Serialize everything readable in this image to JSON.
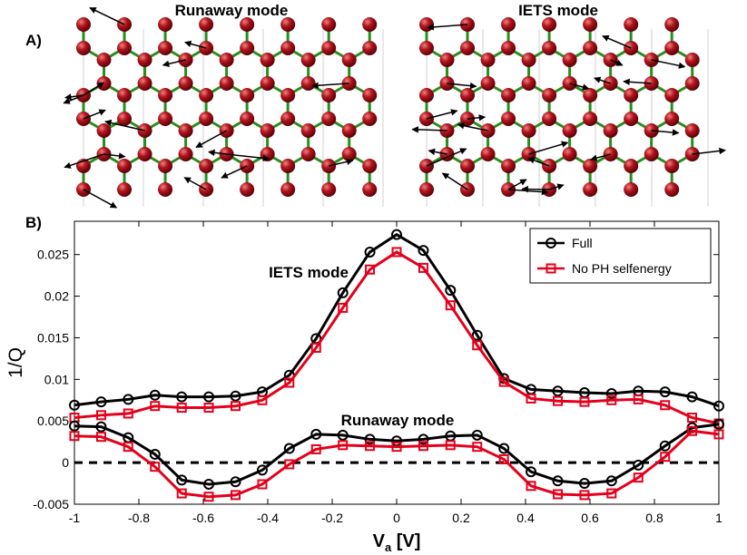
{
  "panel_a": {
    "label": "A)",
    "left_title": "Runaway mode",
    "right_title": "IETS mode"
  },
  "colors": {
    "atom": "#b0141c",
    "bond": "#2a8c1e",
    "arrow": "#000000",
    "full": "#000000",
    "no_ph": "#e3001b"
  },
  "chart_data": {
    "panel_label": "B)",
    "type": "line",
    "xlabel_main": "V",
    "xlabel_sub": "a",
    "xlabel_unit": " [V]",
    "ylabel": "1/Q",
    "xlim": [
      -1,
      1
    ],
    "ylim": [
      -0.005,
      0.029
    ],
    "xticks": [
      -1,
      -0.8,
      -0.6,
      -0.4,
      -0.2,
      0,
      0.2,
      0.4,
      0.6,
      0.8,
      1
    ],
    "xtick_labels": [
      "-1",
      "-0.8",
      "-0.6",
      "-0.4",
      "-0.2",
      "0",
      "0.2",
      "0.4",
      "0.6",
      "0.8",
      "1"
    ],
    "yticks": [
      -0.005,
      0,
      0.005,
      0.01,
      0.015,
      0.02,
      0.025
    ],
    "ytick_labels": [
      "-0.005",
      "0",
      "0.005",
      "0.01",
      "0.015",
      "0.02",
      "0.025"
    ],
    "legend": [
      "Full",
      "No PH selfenergy"
    ],
    "annotations": [
      "IETS mode",
      "Runaway mode"
    ],
    "x": [
      -1,
      -0.917,
      -0.833,
      -0.75,
      -0.667,
      -0.583,
      -0.5,
      -0.417,
      -0.333,
      -0.25,
      -0.167,
      -0.083,
      0,
      0.083,
      0.167,
      0.25,
      0.333,
      0.417,
      0.5,
      0.583,
      0.667,
      0.75,
      0.833,
      0.917,
      1
    ],
    "series": [
      {
        "name": "Full (IETS mode)",
        "legend_index": 0,
        "values": [
          0.0069,
          0.0073,
          0.0076,
          0.0081,
          0.0079,
          0.0079,
          0.008,
          0.0085,
          0.0105,
          0.0149,
          0.0204,
          0.0253,
          0.0274,
          0.0255,
          0.0207,
          0.0153,
          0.0101,
          0.0088,
          0.0086,
          0.0084,
          0.0083,
          0.0086,
          0.0085,
          0.0079,
          0.0068
        ]
      },
      {
        "name": "No PH selfenergy (IETS mode)",
        "legend_index": 1,
        "values": [
          0.0054,
          0.0057,
          0.0059,
          0.0068,
          0.0066,
          0.0066,
          0.0068,
          0.0075,
          0.0096,
          0.0138,
          0.0186,
          0.0232,
          0.0253,
          0.0234,
          0.0189,
          0.0141,
          0.0097,
          0.0077,
          0.0074,
          0.0073,
          0.0075,
          0.0076,
          0.0069,
          0.0054,
          0.0047
        ]
      },
      {
        "name": "Full (Runaway mode)",
        "legend_index": 0,
        "values": [
          0.0044,
          0.0043,
          0.003,
          0.001,
          -0.0021,
          -0.0026,
          -0.0023,
          -0.0009,
          0.0017,
          0.0034,
          0.0033,
          0.0028,
          0.0026,
          0.0028,
          0.0032,
          0.0033,
          0.0017,
          -0.0011,
          -0.0022,
          -0.0025,
          -0.0022,
          -0.0003,
          0.002,
          0.0042,
          0.0046
        ]
      },
      {
        "name": "No PH selfenergy (Runaway mode)",
        "legend_index": 1,
        "values": [
          0.0032,
          0.0031,
          0.0019,
          -0.0005,
          -0.0037,
          -0.0041,
          -0.0039,
          -0.0026,
          -0.0002,
          0.0016,
          0.0021,
          0.002,
          0.0019,
          0.002,
          0.0021,
          0.0019,
          0.0004,
          -0.0028,
          -0.0038,
          -0.0039,
          -0.0037,
          -0.0018,
          0.0007,
          0.0038,
          0.0034
        ]
      }
    ]
  }
}
